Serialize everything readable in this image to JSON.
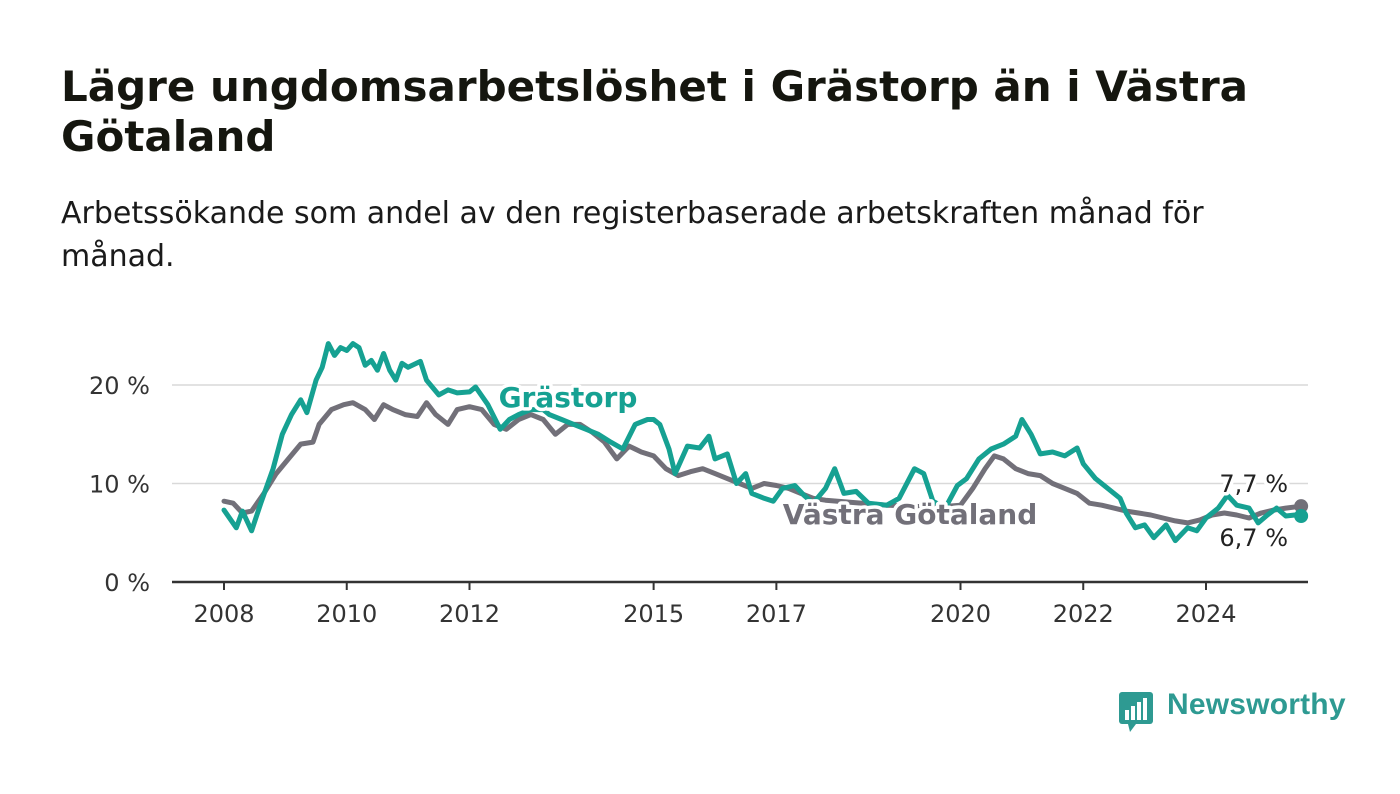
{
  "title": "Lägre ungdomsarbetslöshet i Grästorp än i Västra Götaland",
  "subtitle": "Arbetssökande som andel av den registerbaserade arbetskraften månad för månad.",
  "brand": {
    "name": "Newsworthy",
    "color": "#2e9a92"
  },
  "colors": {
    "grastorp": "#16a192",
    "vastra": "#727079",
    "grid": "#d9d9d9",
    "axis": "#333333"
  },
  "chart_data": {
    "type": "line",
    "x_ticks": [
      2008,
      2010,
      2012,
      2015,
      2017,
      2020,
      2022,
      2024
    ],
    "x_tick_labels": [
      "2008",
      "2010",
      "2012",
      "2015",
      "2017",
      "2020",
      "2022",
      "2024"
    ],
    "y_ticks": [
      0,
      10,
      20
    ],
    "y_tick_labels": [
      "0 %",
      "10 %",
      "20 %"
    ],
    "xlim": [
      2007.2,
      2025.8
    ],
    "ylim": [
      0,
      26
    ],
    "grid": "horizontal",
    "series": [
      {
        "name": "Grästorp",
        "color": "#16a192",
        "end_label": "6,7 %",
        "points": [
          [
            2008.0,
            7.3
          ],
          [
            2008.2,
            5.5
          ],
          [
            2008.3,
            7.2
          ],
          [
            2008.45,
            5.2
          ],
          [
            2008.6,
            8.0
          ],
          [
            2008.8,
            11.5
          ],
          [
            2008.95,
            15.0
          ],
          [
            2009.1,
            17.0
          ],
          [
            2009.25,
            18.5
          ],
          [
            2009.35,
            17.2
          ],
          [
            2009.5,
            20.5
          ],
          [
            2009.6,
            21.8
          ],
          [
            2009.7,
            24.2
          ],
          [
            2009.8,
            23.0
          ],
          [
            2009.9,
            23.8
          ],
          [
            2010.0,
            23.5
          ],
          [
            2010.1,
            24.2
          ],
          [
            2010.2,
            23.8
          ],
          [
            2010.3,
            22.0
          ],
          [
            2010.4,
            22.5
          ],
          [
            2010.5,
            21.5
          ],
          [
            2010.6,
            23.2
          ],
          [
            2010.7,
            21.5
          ],
          [
            2010.8,
            20.5
          ],
          [
            2010.9,
            22.2
          ],
          [
            2011.0,
            21.8
          ],
          [
            2011.2,
            22.4
          ],
          [
            2011.3,
            20.5
          ],
          [
            2011.5,
            19.0
          ],
          [
            2011.65,
            19.5
          ],
          [
            2011.8,
            19.2
          ],
          [
            2012.0,
            19.3
          ],
          [
            2012.1,
            19.8
          ],
          [
            2012.3,
            18.0
          ],
          [
            2012.5,
            15.5
          ],
          [
            2012.65,
            16.5
          ],
          [
            2012.8,
            17.0
          ],
          [
            2013.0,
            17.5
          ],
          [
            2013.2,
            17.5
          ],
          [
            2013.3,
            17.0
          ],
          [
            2013.5,
            16.5
          ],
          [
            2013.7,
            16.0
          ],
          [
            2013.9,
            15.5
          ],
          [
            2014.1,
            15.0
          ],
          [
            2014.3,
            14.2
          ],
          [
            2014.5,
            13.5
          ],
          [
            2014.7,
            16.0
          ],
          [
            2014.9,
            16.5
          ],
          [
            2015.0,
            16.5
          ],
          [
            2015.1,
            16.0
          ],
          [
            2015.25,
            13.5
          ],
          [
            2015.35,
            11.0
          ],
          [
            2015.55,
            13.8
          ],
          [
            2015.75,
            13.6
          ],
          [
            2015.9,
            14.8
          ],
          [
            2016.0,
            12.5
          ],
          [
            2016.2,
            13.0
          ],
          [
            2016.35,
            10.0
          ],
          [
            2016.5,
            11.0
          ],
          [
            2016.6,
            9.0
          ],
          [
            2016.8,
            8.5
          ],
          [
            2016.95,
            8.2
          ],
          [
            2017.1,
            9.5
          ],
          [
            2017.3,
            9.8
          ],
          [
            2017.45,
            8.8
          ],
          [
            2017.6,
            8.0
          ],
          [
            2017.8,
            9.5
          ],
          [
            2017.95,
            11.5
          ],
          [
            2018.1,
            9.0
          ],
          [
            2018.3,
            9.2
          ],
          [
            2018.5,
            8.0
          ],
          [
            2018.8,
            7.8
          ],
          [
            2019.0,
            8.5
          ],
          [
            2019.25,
            11.5
          ],
          [
            2019.4,
            11.0
          ],
          [
            2019.55,
            8.2
          ],
          [
            2019.75,
            7.5
          ],
          [
            2019.95,
            9.8
          ],
          [
            2020.1,
            10.5
          ],
          [
            2020.3,
            12.5
          ],
          [
            2020.5,
            13.5
          ],
          [
            2020.7,
            14.0
          ],
          [
            2020.9,
            14.8
          ],
          [
            2021.0,
            16.5
          ],
          [
            2021.15,
            15.0
          ],
          [
            2021.3,
            13.0
          ],
          [
            2021.5,
            13.2
          ],
          [
            2021.7,
            12.8
          ],
          [
            2021.9,
            13.6
          ],
          [
            2022.0,
            12.0
          ],
          [
            2022.2,
            10.5
          ],
          [
            2022.4,
            9.5
          ],
          [
            2022.6,
            8.5
          ],
          [
            2022.7,
            7.0
          ],
          [
            2022.85,
            5.5
          ],
          [
            2023.0,
            5.8
          ],
          [
            2023.15,
            4.5
          ],
          [
            2023.35,
            5.8
          ],
          [
            2023.5,
            4.2
          ],
          [
            2023.7,
            5.5
          ],
          [
            2023.85,
            5.2
          ],
          [
            2024.0,
            6.5
          ],
          [
            2024.2,
            7.5
          ],
          [
            2024.35,
            8.8
          ],
          [
            2024.5,
            7.8
          ],
          [
            2024.7,
            7.5
          ],
          [
            2024.85,
            6.0
          ],
          [
            2025.0,
            6.8
          ],
          [
            2025.15,
            7.5
          ],
          [
            2025.3,
            6.7
          ],
          [
            2025.45,
            6.8
          ],
          [
            2025.55,
            6.7
          ]
        ]
      },
      {
        "name": "Västra Götaland",
        "color": "#727079",
        "end_label": "7,7 %",
        "points": [
          [
            2008.0,
            8.2
          ],
          [
            2008.15,
            8.0
          ],
          [
            2008.3,
            7.0
          ],
          [
            2008.45,
            7.2
          ],
          [
            2008.65,
            9.0
          ],
          [
            2008.85,
            11.0
          ],
          [
            2009.05,
            12.5
          ],
          [
            2009.25,
            14.0
          ],
          [
            2009.45,
            14.2
          ],
          [
            2009.55,
            16.0
          ],
          [
            2009.75,
            17.5
          ],
          [
            2009.95,
            18.0
          ],
          [
            2010.1,
            18.2
          ],
          [
            2010.3,
            17.5
          ],
          [
            2010.45,
            16.5
          ],
          [
            2010.6,
            18.0
          ],
          [
            2010.75,
            17.5
          ],
          [
            2010.95,
            17.0
          ],
          [
            2011.15,
            16.8
          ],
          [
            2011.3,
            18.2
          ],
          [
            2011.45,
            17.0
          ],
          [
            2011.65,
            16.0
          ],
          [
            2011.8,
            17.5
          ],
          [
            2012.0,
            17.8
          ],
          [
            2012.2,
            17.5
          ],
          [
            2012.4,
            16.0
          ],
          [
            2012.6,
            15.5
          ],
          [
            2012.8,
            16.5
          ],
          [
            2013.0,
            17.0
          ],
          [
            2013.2,
            16.5
          ],
          [
            2013.4,
            15.0
          ],
          [
            2013.6,
            16.0
          ],
          [
            2013.8,
            16.0
          ],
          [
            2014.0,
            15.2
          ],
          [
            2014.2,
            14.2
          ],
          [
            2014.4,
            12.5
          ],
          [
            2014.6,
            13.8
          ],
          [
            2014.8,
            13.2
          ],
          [
            2015.0,
            12.8
          ],
          [
            2015.2,
            11.5
          ],
          [
            2015.4,
            10.8
          ],
          [
            2015.6,
            11.2
          ],
          [
            2015.8,
            11.5
          ],
          [
            2016.0,
            11.0
          ],
          [
            2016.2,
            10.5
          ],
          [
            2016.4,
            10.0
          ],
          [
            2016.6,
            9.5
          ],
          [
            2016.8,
            10.0
          ],
          [
            2017.0,
            9.8
          ],
          [
            2017.2,
            9.5
          ],
          [
            2017.4,
            9.0
          ],
          [
            2017.6,
            8.5
          ],
          [
            2017.8,
            8.3
          ],
          [
            2018.0,
            8.2
          ],
          [
            2018.4,
            8.0
          ],
          [
            2018.8,
            7.8
          ],
          [
            2019.2,
            7.7
          ],
          [
            2019.6,
            7.6
          ],
          [
            2020.0,
            7.8
          ],
          [
            2020.2,
            9.5
          ],
          [
            2020.4,
            11.5
          ],
          [
            2020.55,
            12.8
          ],
          [
            2020.7,
            12.5
          ],
          [
            2020.9,
            11.5
          ],
          [
            2021.1,
            11.0
          ],
          [
            2021.3,
            10.8
          ],
          [
            2021.5,
            10.0
          ],
          [
            2021.7,
            9.5
          ],
          [
            2021.9,
            9.0
          ],
          [
            2022.1,
            8.0
          ],
          [
            2022.3,
            7.8
          ],
          [
            2022.5,
            7.5
          ],
          [
            2022.7,
            7.2
          ],
          [
            2022.9,
            7.0
          ],
          [
            2023.1,
            6.8
          ],
          [
            2023.3,
            6.5
          ],
          [
            2023.5,
            6.2
          ],
          [
            2023.7,
            6.0
          ],
          [
            2023.9,
            6.3
          ],
          [
            2024.1,
            6.8
          ],
          [
            2024.3,
            7.0
          ],
          [
            2024.5,
            6.8
          ],
          [
            2024.7,
            6.5
          ],
          [
            2024.9,
            7.0
          ],
          [
            2025.1,
            7.3
          ],
          [
            2025.3,
            7.5
          ],
          [
            2025.55,
            7.7
          ]
        ]
      }
    ]
  }
}
